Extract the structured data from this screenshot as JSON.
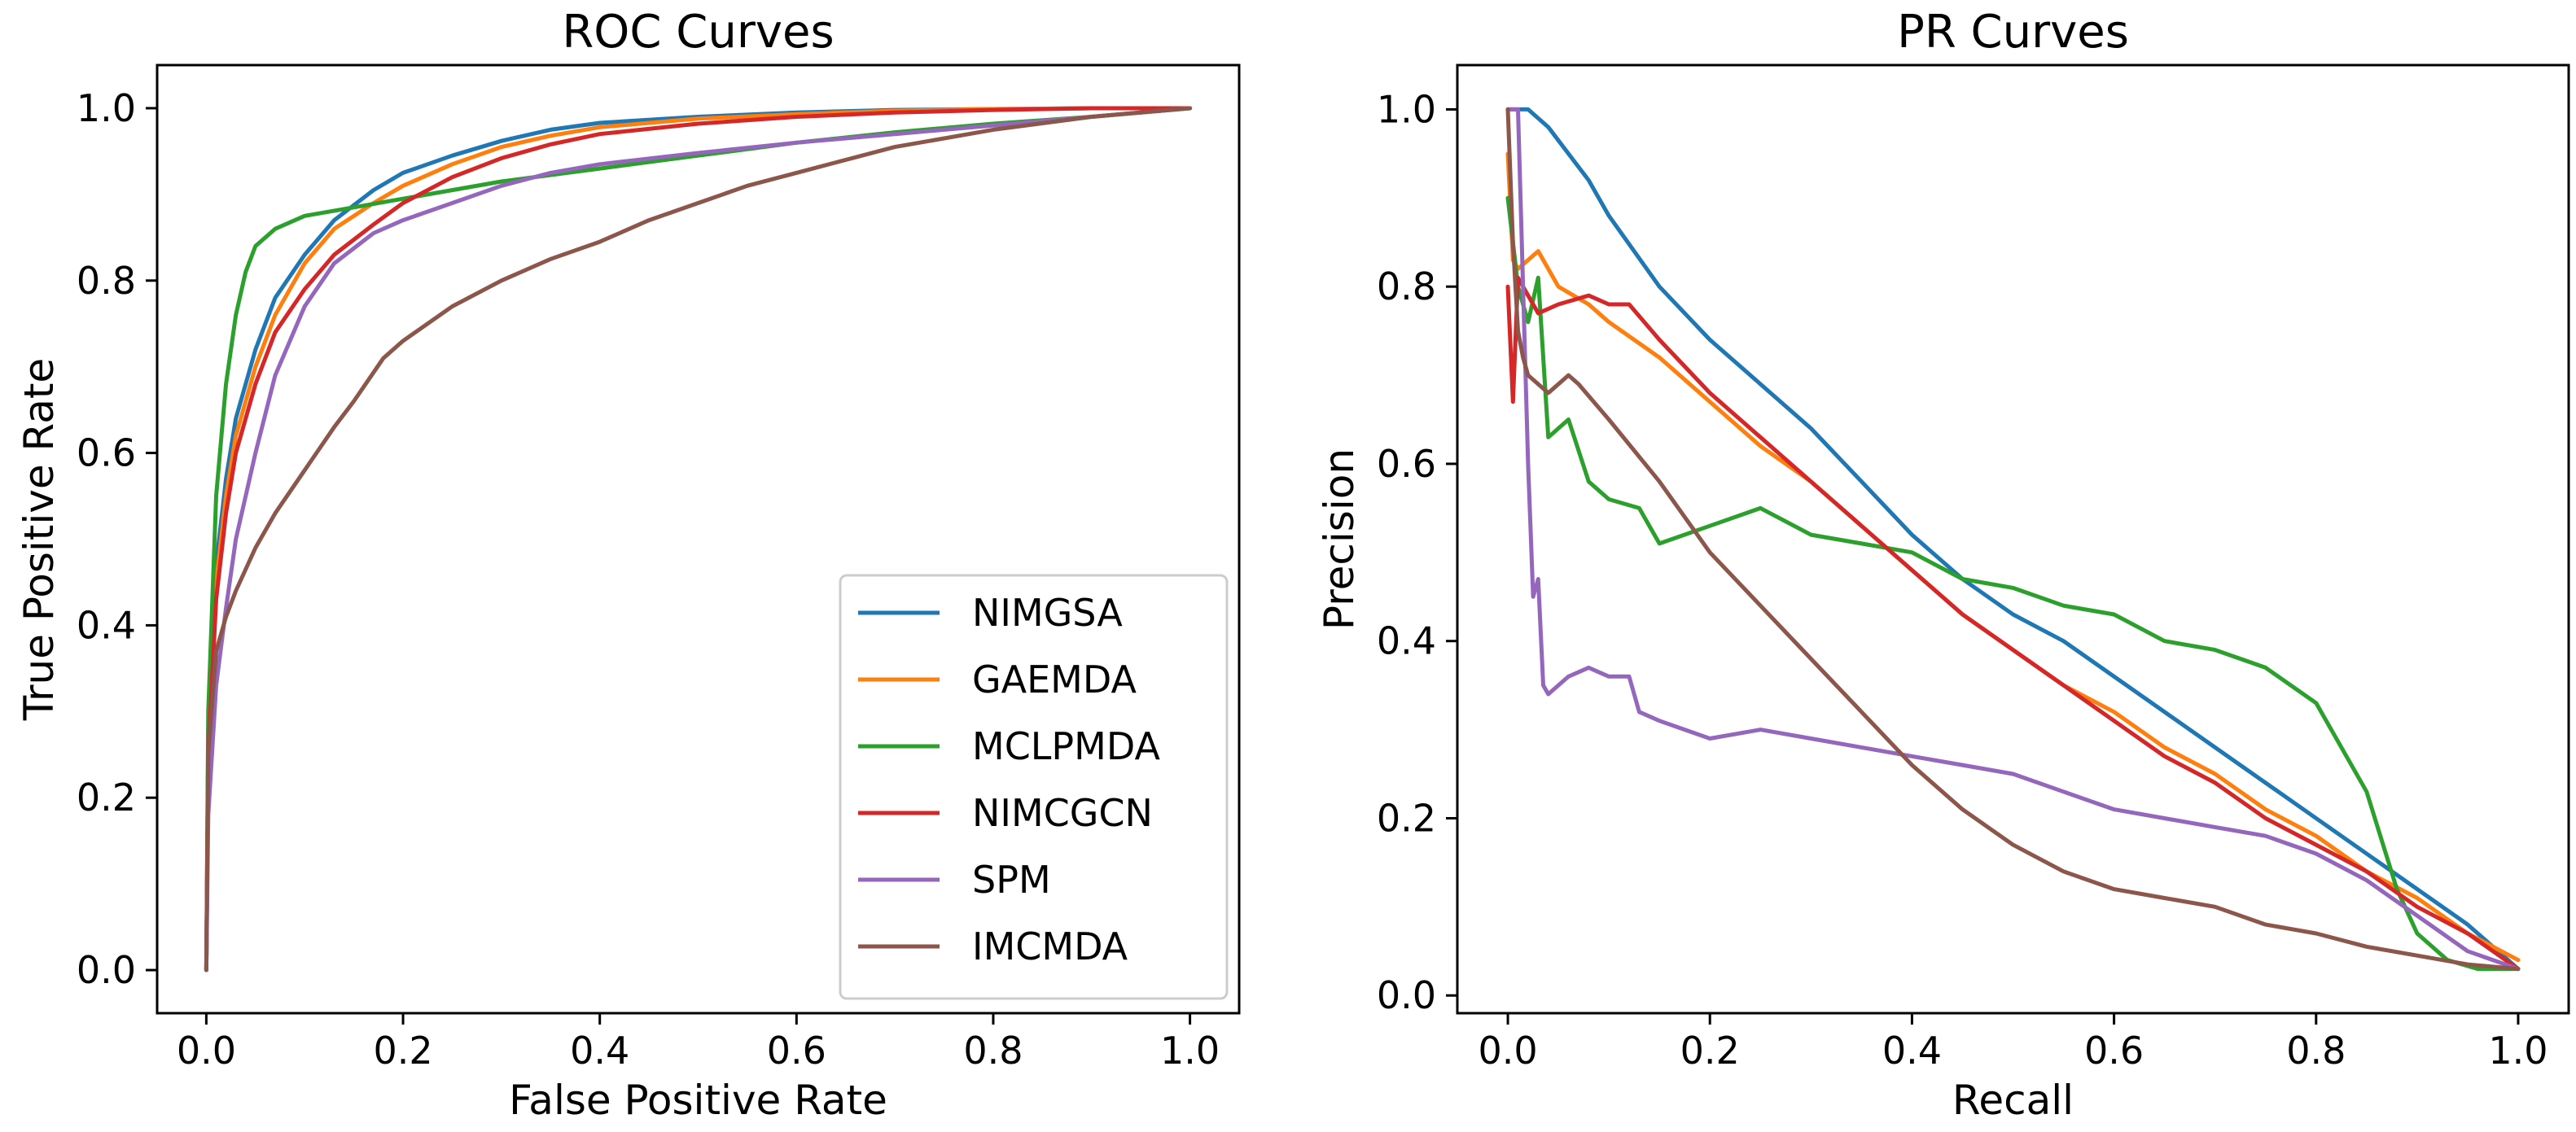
{
  "chart_data": [
    {
      "type": "line",
      "title": "ROC Curves",
      "xlabel": "False Positive Rate",
      "ylabel": "True Positive Rate",
      "xlim": [
        -0.05,
        1.05
      ],
      "ylim": [
        -0.05,
        1.05
      ],
      "xticks": [
        "0.0",
        "0.2",
        "0.4",
        "0.6",
        "0.8",
        "1.0"
      ],
      "yticks": [
        "0.0",
        "0.2",
        "0.4",
        "0.6",
        "0.8",
        "1.0"
      ],
      "legend": "lower-right",
      "series": [
        {
          "name": "NIMGSA",
          "color": "#1f77b4",
          "x": [
            0,
            0.002,
            0.01,
            0.02,
            0.03,
            0.05,
            0.07,
            0.1,
            0.13,
            0.17,
            0.2,
            0.25,
            0.3,
            0.35,
            0.4,
            0.5,
            0.6,
            0.7,
            0.8,
            0.9,
            1.0
          ],
          "y": [
            0,
            0.28,
            0.47,
            0.57,
            0.64,
            0.72,
            0.78,
            0.83,
            0.87,
            0.905,
            0.925,
            0.945,
            0.962,
            0.975,
            0.983,
            0.99,
            0.995,
            0.998,
            0.999,
            1.0,
            1.0
          ]
        },
        {
          "name": "GAEMDA",
          "color": "#ff7f0e",
          "x": [
            0,
            0.002,
            0.01,
            0.02,
            0.03,
            0.05,
            0.07,
            0.1,
            0.13,
            0.17,
            0.2,
            0.25,
            0.3,
            0.35,
            0.4,
            0.5,
            0.6,
            0.7,
            0.8,
            0.9,
            1.0
          ],
          "y": [
            0,
            0.27,
            0.45,
            0.55,
            0.62,
            0.7,
            0.76,
            0.82,
            0.86,
            0.89,
            0.91,
            0.935,
            0.955,
            0.968,
            0.978,
            0.988,
            0.993,
            0.997,
            0.999,
            1.0,
            1.0
          ]
        },
        {
          "name": "MCLPMDA",
          "color": "#2ca02c",
          "x": [
            0,
            0.002,
            0.01,
            0.02,
            0.03,
            0.04,
            0.05,
            0.07,
            0.1,
            0.15,
            0.2,
            0.3,
            0.4,
            0.5,
            0.6,
            0.7,
            0.8,
            0.9,
            1.0
          ],
          "y": [
            0,
            0.3,
            0.55,
            0.68,
            0.76,
            0.81,
            0.84,
            0.86,
            0.875,
            0.885,
            0.895,
            0.915,
            0.93,
            0.945,
            0.96,
            0.972,
            0.982,
            0.99,
            1.0
          ]
        },
        {
          "name": "NIMCGCN",
          "color": "#d62728",
          "x": [
            0,
            0.002,
            0.01,
            0.02,
            0.03,
            0.05,
            0.07,
            0.1,
            0.13,
            0.17,
            0.2,
            0.25,
            0.3,
            0.35,
            0.4,
            0.5,
            0.6,
            0.7,
            0.8,
            0.9,
            1.0
          ],
          "y": [
            0,
            0.25,
            0.43,
            0.53,
            0.6,
            0.68,
            0.74,
            0.79,
            0.83,
            0.865,
            0.89,
            0.92,
            0.942,
            0.958,
            0.97,
            0.982,
            0.99,
            0.995,
            0.998,
            1.0,
            1.0
          ]
        },
        {
          "name": "SPM",
          "color": "#9467bd",
          "x": [
            0,
            0.002,
            0.01,
            0.02,
            0.03,
            0.05,
            0.07,
            0.1,
            0.13,
            0.17,
            0.2,
            0.25,
            0.3,
            0.35,
            0.4,
            0.5,
            0.6,
            0.7,
            0.8,
            0.9,
            1.0
          ],
          "y": [
            0,
            0.18,
            0.33,
            0.42,
            0.5,
            0.6,
            0.69,
            0.77,
            0.82,
            0.855,
            0.87,
            0.89,
            0.91,
            0.925,
            0.935,
            0.948,
            0.96,
            0.97,
            0.98,
            0.99,
            1.0
          ]
        },
        {
          "name": "IMCMDA",
          "color": "#8c564b",
          "x": [
            0,
            0.002,
            0.01,
            0.02,
            0.03,
            0.05,
            0.07,
            0.1,
            0.13,
            0.15,
            0.18,
            0.2,
            0.25,
            0.3,
            0.35,
            0.4,
            0.45,
            0.5,
            0.55,
            0.6,
            0.7,
            0.8,
            0.9,
            1.0
          ],
          "y": [
            0,
            0.25,
            0.37,
            0.41,
            0.44,
            0.49,
            0.53,
            0.58,
            0.63,
            0.66,
            0.71,
            0.73,
            0.77,
            0.8,
            0.825,
            0.845,
            0.87,
            0.89,
            0.91,
            0.925,
            0.955,
            0.975,
            0.99,
            1.0
          ]
        }
      ]
    },
    {
      "type": "line",
      "title": "PR Curves",
      "xlabel": "Recall",
      "ylabel": "Precision",
      "xlim": [
        -0.05,
        1.05
      ],
      "ylim": [
        -0.02,
        1.05
      ],
      "xticks": [
        "0.0",
        "0.2",
        "0.4",
        "0.6",
        "0.8",
        "1.0"
      ],
      "yticks": [
        "0.0",
        "0.2",
        "0.4",
        "0.6",
        "0.8",
        "1.0"
      ],
      "series": [
        {
          "name": "NIMGSA",
          "color": "#1f77b4",
          "x": [
            0,
            0.005,
            0.01,
            0.02,
            0.04,
            0.06,
            0.08,
            0.1,
            0.15,
            0.2,
            0.25,
            0.3,
            0.35,
            0.4,
            0.45,
            0.5,
            0.55,
            0.6,
            0.65,
            0.7,
            0.75,
            0.8,
            0.85,
            0.9,
            0.95,
            1.0
          ],
          "y": [
            1.0,
            1.0,
            1.0,
            1.0,
            0.98,
            0.95,
            0.92,
            0.88,
            0.8,
            0.74,
            0.69,
            0.64,
            0.58,
            0.52,
            0.47,
            0.43,
            0.4,
            0.36,
            0.32,
            0.28,
            0.24,
            0.2,
            0.16,
            0.12,
            0.08,
            0.03
          ]
        },
        {
          "name": "GAEMDA",
          "color": "#ff7f0e",
          "x": [
            0,
            0.005,
            0.01,
            0.02,
            0.03,
            0.05,
            0.08,
            0.1,
            0.15,
            0.2,
            0.25,
            0.3,
            0.35,
            0.4,
            0.45,
            0.5,
            0.55,
            0.6,
            0.65,
            0.7,
            0.75,
            0.8,
            0.85,
            0.9,
            0.95,
            1.0
          ],
          "y": [
            0.95,
            0.83,
            0.82,
            0.83,
            0.84,
            0.8,
            0.78,
            0.76,
            0.72,
            0.67,
            0.62,
            0.58,
            0.53,
            0.48,
            0.43,
            0.39,
            0.35,
            0.32,
            0.28,
            0.25,
            0.21,
            0.18,
            0.14,
            0.11,
            0.07,
            0.04
          ]
        },
        {
          "name": "MCLPMDA",
          "color": "#2ca02c",
          "x": [
            0,
            0.005,
            0.01,
            0.02,
            0.03,
            0.04,
            0.05,
            0.06,
            0.08,
            0.1,
            0.13,
            0.15,
            0.2,
            0.25,
            0.3,
            0.35,
            0.4,
            0.45,
            0.5,
            0.55,
            0.6,
            0.65,
            0.7,
            0.75,
            0.8,
            0.85,
            0.88,
            0.9,
            0.93,
            0.96,
            1.0
          ],
          "y": [
            0.9,
            0.85,
            0.8,
            0.76,
            0.81,
            0.63,
            0.64,
            0.65,
            0.58,
            0.56,
            0.55,
            0.51,
            0.53,
            0.55,
            0.52,
            0.51,
            0.5,
            0.47,
            0.46,
            0.44,
            0.43,
            0.4,
            0.39,
            0.37,
            0.33,
            0.23,
            0.12,
            0.07,
            0.04,
            0.03,
            0.03
          ]
        },
        {
          "name": "NIMCGCN",
          "color": "#d62728",
          "x": [
            0,
            0.005,
            0.01,
            0.02,
            0.03,
            0.05,
            0.08,
            0.1,
            0.12,
            0.15,
            0.2,
            0.25,
            0.3,
            0.35,
            0.4,
            0.45,
            0.5,
            0.55,
            0.6,
            0.65,
            0.7,
            0.75,
            0.8,
            0.85,
            0.9,
            0.95,
            1.0
          ],
          "y": [
            0.8,
            0.67,
            0.81,
            0.79,
            0.77,
            0.78,
            0.79,
            0.78,
            0.78,
            0.74,
            0.68,
            0.63,
            0.58,
            0.53,
            0.48,
            0.43,
            0.39,
            0.35,
            0.31,
            0.27,
            0.24,
            0.2,
            0.17,
            0.14,
            0.1,
            0.07,
            0.03
          ]
        },
        {
          "name": "SPM",
          "color": "#9467bd",
          "x": [
            0,
            0.005,
            0.01,
            0.015,
            0.02,
            0.025,
            0.03,
            0.035,
            0.04,
            0.06,
            0.08,
            0.1,
            0.12,
            0.13,
            0.15,
            0.2,
            0.25,
            0.3,
            0.35,
            0.4,
            0.45,
            0.5,
            0.55,
            0.6,
            0.65,
            0.7,
            0.75,
            0.8,
            0.85,
            0.9,
            0.95,
            1.0
          ],
          "y": [
            1.0,
            1.0,
            1.0,
            0.8,
            0.6,
            0.45,
            0.47,
            0.35,
            0.34,
            0.36,
            0.37,
            0.36,
            0.36,
            0.32,
            0.31,
            0.29,
            0.3,
            0.29,
            0.28,
            0.27,
            0.26,
            0.25,
            0.23,
            0.21,
            0.2,
            0.19,
            0.18,
            0.16,
            0.13,
            0.09,
            0.05,
            0.03
          ]
        },
        {
          "name": "IMCMDA",
          "color": "#8c564b",
          "x": [
            0,
            0.005,
            0.01,
            0.015,
            0.02,
            0.04,
            0.06,
            0.07,
            0.1,
            0.15,
            0.2,
            0.25,
            0.3,
            0.35,
            0.4,
            0.45,
            0.5,
            0.55,
            0.6,
            0.65,
            0.7,
            0.75,
            0.8,
            0.85,
            0.9,
            0.95,
            1.0
          ],
          "y": [
            1.0,
            0.85,
            0.75,
            0.72,
            0.7,
            0.68,
            0.7,
            0.69,
            0.65,
            0.58,
            0.5,
            0.44,
            0.38,
            0.32,
            0.26,
            0.21,
            0.17,
            0.14,
            0.12,
            0.11,
            0.1,
            0.08,
            0.07,
            0.055,
            0.045,
            0.035,
            0.03
          ]
        }
      ]
    }
  ]
}
